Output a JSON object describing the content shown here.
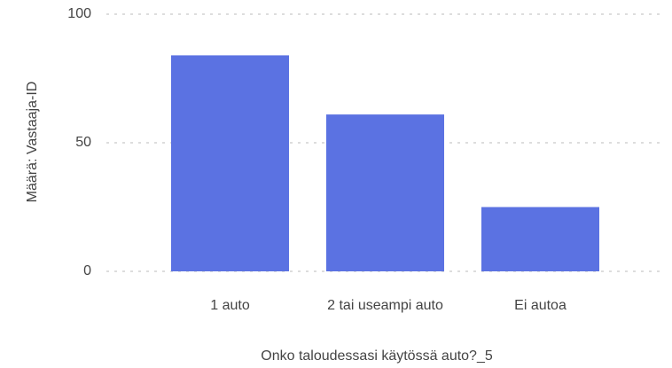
{
  "chart_data": {
    "type": "bar",
    "categories": [
      "1 auto",
      "2 tai useampi auto",
      "Ei autoa"
    ],
    "values": [
      84,
      61,
      25
    ],
    "color": "#5b72e2",
    "xlabel": "Onko taloudessasi käytössä auto?_5",
    "ylabel": "Määrä: Vastaaja-ID",
    "ylim": [
      0,
      100
    ],
    "yticks": [
      0,
      50,
      100
    ],
    "grid": true
  }
}
